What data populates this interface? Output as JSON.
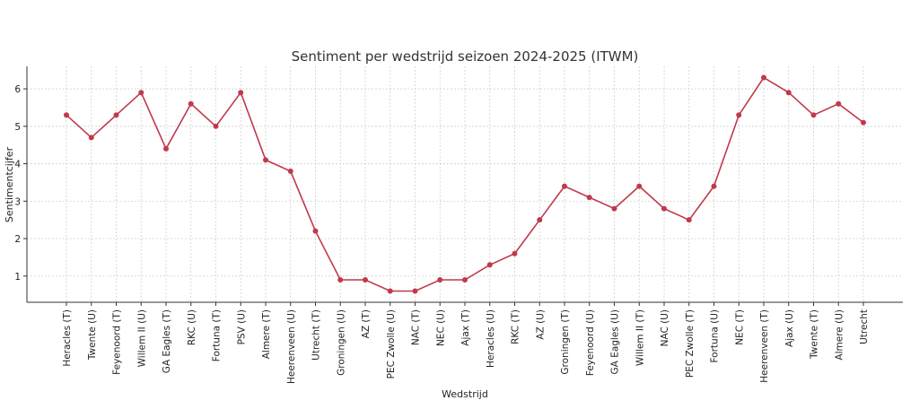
{
  "chart_data": {
    "type": "line",
    "title": "Sentiment per wedstrijd seizoen 2024-2025 (ITWM)",
    "xlabel": "Wedstrijd",
    "ylabel": "Sentimentcijfer",
    "ylim": [
      0.3,
      6.6
    ],
    "yticks": [
      1,
      2,
      3,
      4,
      5,
      6
    ],
    "grid": true,
    "color": "#c0394b",
    "categories": [
      "Heracles (T)",
      "Twente (U)",
      "Feyenoord (T)",
      "Willem II (U)",
      "GA Eagles (T)",
      "RKC (U)",
      "Fortuna (T)",
      "PSV (U)",
      "Almere (T)",
      "Heerenveen (U)",
      "Utrecht (T)",
      "Groningen (U)",
      "AZ (T)",
      "PEC Zwolle (U)",
      "NAC (T)",
      "NEC (U)",
      "Ajax (T)",
      "Heracles (U)",
      "RKC (T)",
      "AZ (U)",
      "Groningen (T)",
      "Feyenoord (U)",
      "GA Eagles (U)",
      "Willem II (T)",
      "NAC (U)",
      "PEC Zwolle (T)",
      "Fortuna (U)",
      "NEC (T)",
      "Heerenveen (T)",
      "Ajax (U)",
      "Twente (T)",
      "Almere (U)",
      "Utrecht"
    ],
    "values": [
      5.3,
      4.7,
      5.3,
      5.9,
      4.4,
      5.6,
      5.0,
      5.9,
      4.1,
      3.8,
      2.2,
      0.9,
      0.9,
      0.6,
      0.6,
      0.9,
      0.9,
      1.3,
      1.6,
      2.5,
      3.4,
      3.1,
      2.8,
      3.4,
      2.8,
      2.5,
      3.4,
      5.3,
      6.3,
      5.9,
      5.3,
      5.6,
      5.1
    ]
  }
}
